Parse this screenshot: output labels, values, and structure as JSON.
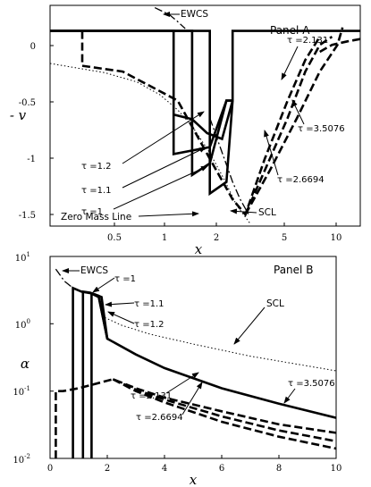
{
  "chart_data": [
    {
      "type": "line",
      "panel": "Panel A",
      "xlabel": "x",
      "ylabel": "-v",
      "xscale": "log",
      "xlim": [
        0.2,
        10
      ],
      "ylim": [
        -1.68,
        0.22
      ],
      "xticks": [
        0.5,
        1,
        2,
        5,
        10
      ],
      "yticks": [
        0,
        -0.5,
        -1,
        -1.5
      ],
      "series": [
        {
          "name": "EWCS",
          "style": "dashdot",
          "x": [
            0.75,
            0.9,
            1.0,
            1.1
          ],
          "y": [
            0.2,
            0.14,
            0.08,
            0.02
          ]
        },
        {
          "name": "Zero Mass Line",
          "style": "dotted",
          "x": [
            0.2,
            0.4,
            0.6,
            0.8,
            1.0,
            1.2,
            1.5,
            1.8,
            2.1,
            2.5
          ],
          "y": [
            -0.28,
            -0.36,
            -0.44,
            -0.55,
            -0.68,
            -0.82,
            -1.05,
            -1.28,
            -1.5,
            -1.66
          ]
        },
        {
          "name": "SCL",
          "style": "dashdot",
          "x": [
            1.5,
            1.8,
            2.0,
            2.2,
            2.45
          ],
          "y": [
            -0.75,
            -1.1,
            -1.3,
            -1.45,
            -1.58
          ]
        },
        {
          "name": "τ = 1",
          "style": "solid",
          "x": [
            0.2,
            1.5,
            1.5,
            1.85,
            2.0,
            2.0,
            10
          ],
          "y": [
            0,
            0,
            -1.4,
            -1.3,
            -0.6,
            0,
            0
          ]
        },
        {
          "name": "τ = 1.1",
          "style": "solid",
          "x": [
            0.2,
            1.2,
            1.2,
            1.5,
            1.85,
            2.0
          ],
          "y": [
            0,
            0,
            -1.24,
            -1.14,
            -0.6,
            -0.6
          ]
        },
        {
          "name": "τ = 1.2",
          "style": "solid",
          "x": [
            0.2,
            0.95,
            0.95,
            1.5,
            1.85,
            2.0
          ],
          "y": [
            0,
            0,
            -1.06,
            -1.0,
            -0.6,
            -0.6
          ]
        },
        {
          "name": "τ = 1.2 (upper)",
          "style": "solid",
          "x": [
            0.95,
            1.2,
            1.45,
            1.75,
            2.0
          ],
          "y": [
            -0.72,
            -0.76,
            -0.88,
            -0.93,
            -0.6
          ]
        },
        {
          "name": "τ = 2.131",
          "style": "dashed",
          "x": [
            0.3,
            0.3,
            0.5,
            1.0,
            1.5,
            2.0,
            2.35,
            3.0,
            4.0,
            5.0,
            6.0
          ],
          "y": [
            0,
            -0.3,
            -0.35,
            -0.6,
            -1.1,
            -1.45,
            -1.58,
            -1.1,
            -0.6,
            -0.25,
            -0.05
          ]
        },
        {
          "name": "τ = 2.6694",
          "style": "dashed",
          "x": [
            2.35,
            3.0,
            4.0,
            5.0,
            6.0,
            7.0
          ],
          "y": [
            -1.58,
            -1.2,
            -0.75,
            -0.35,
            -0.12,
            -0.05
          ]
        },
        {
          "name": "τ = 3.5076",
          "style": "dashed",
          "x": [
            2.35,
            3.2,
            4.5,
            6.0,
            7.5,
            8.0
          ],
          "y": [
            -1.58,
            -1.2,
            -0.75,
            -0.35,
            -0.12,
            0.03
          ]
        },
        {
          "name": "τ = 3.5076 (tail)",
          "style": "dashed",
          "x": [
            6.0,
            7.0,
            8.5,
            10.0
          ],
          "y": [
            -0.18,
            -0.12,
            -0.09,
            -0.07
          ]
        }
      ],
      "annotations": [
        "EWCS",
        "Panel A",
        "τ = 1.2",
        "τ = 1.1",
        "τ = 1",
        "Zero Mass Line",
        "SCL",
        "τ = 2.131",
        "τ = 3.5076",
        "τ = 2.6694"
      ]
    },
    {
      "type": "line",
      "panel": "Panel B",
      "xlabel": "x",
      "ylabel": "α",
      "yscale": "log",
      "xlim": [
        0,
        10
      ],
      "ylim": [
        0.01,
        10
      ],
      "xticks": [
        0,
        2,
        4,
        6,
        8,
        10
      ],
      "yticks": [
        0.01,
        0.1,
        1,
        10
      ],
      "series": [
        {
          "name": "EWCS",
          "style": "dashdot",
          "x": [
            0.2,
            0.5,
            0.8,
            1.1
          ],
          "y": [
            6.5,
            4.3,
            3.4,
            3.0
          ]
        },
        {
          "name": "SCL",
          "style": "dotted",
          "x": [
            1.8,
            2.5,
            3.5,
            5.0,
            7.0,
            10.0
          ],
          "y": [
            1.3,
            0.95,
            0.7,
            0.5,
            0.33,
            0.2
          ]
        },
        {
          "name": "τ = 1",
          "style": "solid",
          "x": [
            0.8,
            0.8,
            1.1,
            1.5,
            1.8,
            2.0,
            3.0,
            4.0,
            6.0,
            8.0,
            10.0
          ],
          "y": [
            0.01,
            3.4,
            3.0,
            2.8,
            2.5,
            0.6,
            0.35,
            0.22,
            0.11,
            0.065,
            0.04
          ]
        },
        {
          "name": "τ = 1.1",
          "style": "solid",
          "x": [
            1.15,
            1.15,
            1.4,
            1.7,
            2.0
          ],
          "y": [
            0.01,
            3.0,
            2.9,
            2.6,
            0.6
          ]
        },
        {
          "name": "τ = 1.2",
          "style": "solid",
          "x": [
            1.45,
            1.45,
            1.7,
            2.0
          ],
          "y": [
            0.01,
            2.8,
            2.5,
            0.6
          ]
        },
        {
          "name": "τ = 2.131",
          "style": "dashed",
          "x": [
            0.2,
            0.2,
            0.45,
            1.0,
            2.2,
            3.0,
            4.0,
            6.0,
            8.0,
            10.0
          ],
          "y": [
            0.01,
            0.1,
            0.1,
            0.11,
            0.15,
            0.11,
            0.08,
            0.05,
            0.032,
            0.024
          ]
        },
        {
          "name": "τ = 2.6694",
          "style": "dashed",
          "x": [
            2.2,
            3.0,
            4.0,
            6.0,
            8.0,
            10.0
          ],
          "y": [
            0.15,
            0.105,
            0.075,
            0.042,
            0.026,
            0.018
          ]
        },
        {
          "name": "τ = 3.5076",
          "style": "dashed",
          "x": [
            2.2,
            3.0,
            4.0,
            6.0,
            8.0,
            10.0
          ],
          "y": [
            0.15,
            0.1,
            0.068,
            0.035,
            0.021,
            0.014
          ]
        }
      ],
      "annotations": [
        "EWCS",
        "τ = 1",
        "τ = 1.1",
        "τ = 1.2",
        "Panel B",
        "SCL",
        "τ = 3.5076",
        "τ = 2.131",
        "τ = 2.6694"
      ]
    }
  ],
  "labels": {
    "panelA": {
      "title": "Panel A",
      "ylabel": "- v",
      "xlabel": "x",
      "yticks": [
        "0",
        "-0.5",
        "-1",
        "-1.5"
      ],
      "xticks": [
        "0.5",
        "1",
        "2",
        "5",
        "10"
      ],
      "ewcs": "EWCS",
      "tau12": "τ =1.2",
      "tau11": "τ =1.1",
      "tau1": "τ =1",
      "zml": "Zero Mass Line",
      "scl": "SCL",
      "tau2131": "τ =2.131",
      "tau35076": "τ =3.5076",
      "tau26694": "τ =2.6694"
    },
    "panelB": {
      "title": "Panel B",
      "ylabel": "α",
      "xlabel": "x",
      "ytick_base": "10",
      "ytick_exp": [
        "-2",
        "-1",
        "0",
        "1"
      ],
      "xticks": [
        "0",
        "2",
        "4",
        "6",
        "8",
        "10"
      ],
      "ewcs": "EWCS",
      "tau1": "τ =1",
      "tau11": "τ =1.1",
      "tau12": "τ =1.2",
      "scl": "SCL",
      "tau35076": "τ =3.5076",
      "tau2131": "τ =2.131",
      "tau26694": "τ =2.6694"
    }
  }
}
